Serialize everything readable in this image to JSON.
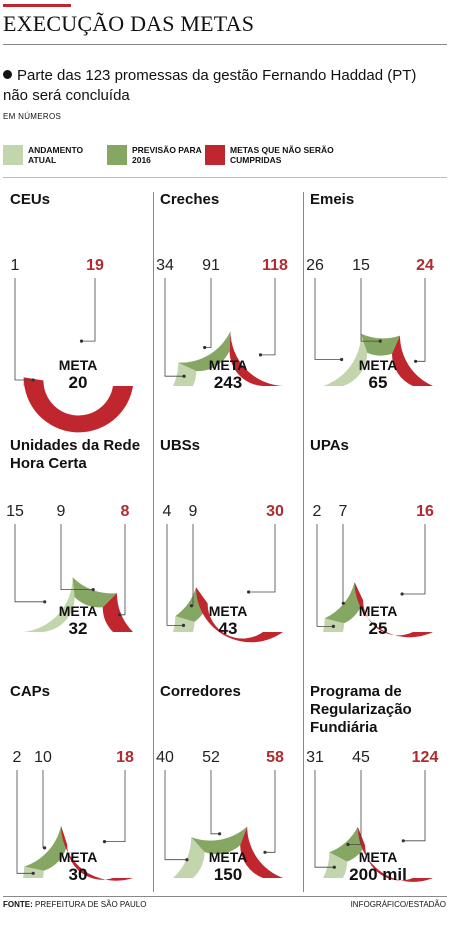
{
  "header": {
    "title": "EXECUÇÃO DAS METAS",
    "intro": "Parte das 123 promessas da gestão Fernando Haddad (PT) não será concluída",
    "units": "EM NÚMEROS"
  },
  "legend": [
    {
      "label": "ANDAMENTO ATUAL",
      "color": "#c3d5ad"
    },
    {
      "label": "PREVISÃO PARA 2016",
      "color": "#86a764"
    },
    {
      "label": "METAS QUE NÃO SERÃO CUMPRIDAS",
      "color": "#c0262d"
    }
  ],
  "colors": {
    "current": "#c3d5ad",
    "forecast": "#86a764",
    "missed": "#c0262d",
    "missed_text": "#b02a30"
  },
  "meta_label": "META",
  "footer": {
    "source_label": "FONTE:",
    "source": "PREFEITURA DE SÃO PAULO",
    "credit": "INFOGRÁFICO/ESTADÃO"
  },
  "chart_data": [
    {
      "type": "gauge",
      "title": "CEUs",
      "target": 20,
      "target_label": "20",
      "values": {
        "current": 1,
        "forecast": 0,
        "missed": 19
      },
      "labels": {
        "current": "1",
        "forecast": "",
        "missed": "19"
      }
    },
    {
      "type": "gauge",
      "title": "Creches",
      "target": 243,
      "target_label": "243",
      "values": {
        "current": 34,
        "forecast": 91,
        "missed": 118
      },
      "labels": {
        "current": "34",
        "forecast": "91",
        "missed": "118"
      }
    },
    {
      "type": "gauge",
      "title": "Emeis",
      "target": 65,
      "target_label": "65",
      "values": {
        "current": 26,
        "forecast": 15,
        "missed": 24
      },
      "labels": {
        "current": "26",
        "forecast": "15",
        "missed": "24"
      }
    },
    {
      "type": "gauge",
      "title": "Unidades da Rede Hora Certa",
      "target": 32,
      "target_label": "32",
      "values": {
        "current": 15,
        "forecast": 9,
        "missed": 8
      },
      "labels": {
        "current": "15",
        "forecast": "9",
        "missed": "8"
      }
    },
    {
      "type": "gauge",
      "title": "UBSs",
      "target": 43,
      "target_label": "43",
      "values": {
        "current": 4,
        "forecast": 9,
        "missed": 30
      },
      "labels": {
        "current": "4",
        "forecast": "9",
        "missed": "30"
      }
    },
    {
      "type": "gauge",
      "title": "UPAs",
      "target": 25,
      "target_label": "25",
      "values": {
        "current": 2,
        "forecast": 7,
        "missed": 16
      },
      "labels": {
        "current": "2",
        "forecast": "7",
        "missed": "16"
      }
    },
    {
      "type": "gauge",
      "title": "CAPs",
      "target": 30,
      "target_label": "30",
      "values": {
        "current": 2,
        "forecast": 10,
        "missed": 18
      },
      "labels": {
        "current": "2",
        "forecast": "10",
        "missed": "18"
      }
    },
    {
      "type": "gauge",
      "title": "Corredores",
      "target": 150,
      "target_label": "150",
      "values": {
        "current": 40,
        "forecast": 52,
        "missed": 58
      },
      "labels": {
        "current": "40",
        "forecast": "52",
        "missed": "58"
      }
    },
    {
      "type": "gauge",
      "title": "Programa de Regularização Fundiária",
      "target": 200,
      "target_label": "200 mil",
      "values": {
        "current": 31,
        "forecast": 45,
        "missed": 124
      },
      "labels": {
        "current": "31",
        "forecast": "45",
        "missed": "124"
      }
    }
  ]
}
